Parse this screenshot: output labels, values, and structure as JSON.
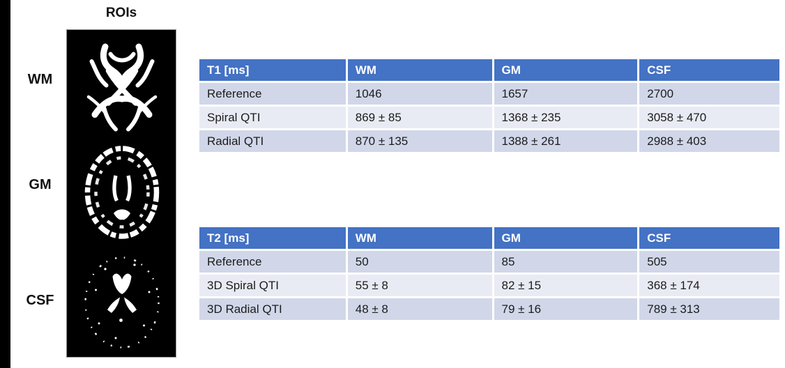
{
  "roi_panel": {
    "title": "ROIs",
    "labels": [
      {
        "text": "WM"
      },
      {
        "text": "GM"
      },
      {
        "text": "CSF"
      }
    ],
    "masks": [
      "wm-mask",
      "gm-mask",
      "csf-mask"
    ]
  },
  "tables": [
    {
      "header": [
        "T1 [ms]",
        "WM",
        "GM",
        "CSF"
      ],
      "rows": [
        [
          "Reference",
          "1046",
          "1657",
          "2700"
        ],
        [
          "Spiral QTI",
          "869 ± 85",
          "1368 ± 235",
          "3058 ± 470"
        ],
        [
          "Radial QTI",
          "870 ± 135",
          "1388 ± 261",
          "2988 ± 403"
        ]
      ]
    },
    {
      "header": [
        "T2 [ms]",
        "WM",
        "GM",
        "CSF"
      ],
      "rows": [
        [
          "Reference",
          "50",
          "85",
          "505"
        ],
        [
          "3D Spiral QTI",
          "55 ± 8",
          "82 ± 15",
          "368 ± 174"
        ],
        [
          "3D Radial QTI",
          "48 ± 8",
          "79 ± 16",
          "789 ± 313"
        ]
      ]
    }
  ],
  "chart_data": [
    {
      "type": "table",
      "title": "T1 [ms]",
      "columns": [
        "T1 [ms]",
        "WM",
        "GM",
        "CSF"
      ],
      "rows": [
        [
          "Reference",
          "1046",
          "1657",
          "2700"
        ],
        [
          "Spiral QTI",
          "869 ± 85",
          "1368 ± 235",
          "3058 ± 470"
        ],
        [
          "Radial QTI",
          "870 ± 135",
          "1388 ± 261",
          "2988 ± 403"
        ]
      ]
    },
    {
      "type": "table",
      "title": "T2 [ms]",
      "columns": [
        "T2 [ms]",
        "WM",
        "GM",
        "CSF"
      ],
      "rows": [
        [
          "Reference",
          "50",
          "85",
          "505"
        ],
        [
          "3D Spiral QTI",
          "55 ± 8",
          "82 ± 15",
          "368 ± 174"
        ],
        [
          "3D Radial QTI",
          "48 ± 8",
          "79 ± 16",
          "789 ± 313"
        ]
      ]
    }
  ],
  "colors": {
    "table_header_bg": "#4472C4",
    "table_header_text": "#FFFFFF",
    "row_band_dark": "#D1D7E9",
    "row_band_light": "#E9EBF4",
    "body_text": "#1C1C1C",
    "panel_bg": "#000000",
    "mask_fg": "#FFFFFF"
  }
}
